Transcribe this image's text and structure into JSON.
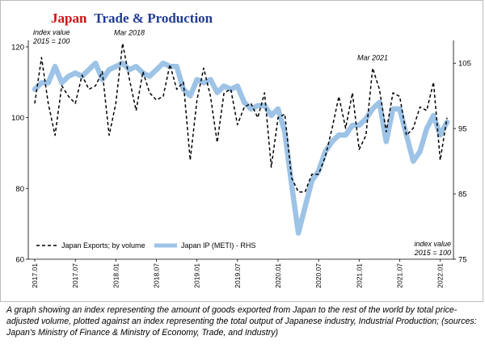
{
  "title": {
    "part1": "Japan",
    "part2": "Trade & Production"
  },
  "caption": "A graph showing an index representing the amount of goods exported from Japan to the rest of the world by total price-adjusted volume, plotted against an index representing the total output of Japanese industry, Industrial Production; (sources: Japan's Ministry of Finance & Ministry of Economy, Trade, and Industry)",
  "chart_data": {
    "type": "line",
    "left_axis_note": [
      "index value",
      "2015 = 100"
    ],
    "right_axis_note": [
      "index value",
      "2015 = 100"
    ],
    "annotations": [
      {
        "text": "Mar 2018",
        "x": "2018.03"
      },
      {
        "text": "Mar 2021",
        "x": "2021.03"
      }
    ],
    "ylim_left": [
      60,
      120
    ],
    "yticks_left": [
      60,
      80,
      100,
      120
    ],
    "ylim_right": [
      75,
      107.5
    ],
    "yticks_right": [
      75,
      85,
      95,
      105
    ],
    "x_tick_labels": [
      "2017.01",
      "2017.07",
      "2018.01",
      "2018.07",
      "2019.01",
      "2019.07",
      "2020.01",
      "2020.07",
      "2021.01",
      "2021.07",
      "2022.01"
    ],
    "legend": {
      "position": "bottom-left",
      "entries": [
        "Japan Exports; by volume",
        "Japan IP (METI) - RHS"
      ]
    },
    "series": [
      {
        "name": "Japan Exports; by volume",
        "axis": "left",
        "style": "dashed",
        "color": "#000000",
        "values": [
          104,
          117,
          104,
          95,
          109,
          106,
          104,
          112,
          108,
          109,
          113,
          95,
          104,
          121,
          111,
          102,
          113,
          107,
          105,
          106,
          115,
          108,
          110,
          88,
          105,
          114,
          106,
          93,
          107,
          108,
          98,
          103,
          104,
          100,
          107,
          86,
          100,
          101,
          83,
          79,
          79,
          84,
          84,
          89,
          97,
          106,
          97,
          107,
          91,
          95,
          114,
          108,
          96,
          107,
          106,
          95,
          97,
          103,
          102,
          110,
          88,
          100
        ]
      },
      {
        "name": "Japan IP (METI) - RHS",
        "axis": "right",
        "style": "solid",
        "color": "#9dc3e6",
        "values": [
          101,
          102,
          102,
          104.5,
          102,
          103,
          103.5,
          103,
          104,
          105,
          102.5,
          104,
          104.5,
          105,
          104,
          104.5,
          103.5,
          103,
          104,
          105,
          104.5,
          104.5,
          101,
          100,
          102.5,
          102,
          102.5,
          100.5,
          101.5,
          101,
          101.5,
          99,
          98,
          98.5,
          98.5,
          97,
          98,
          94.5,
          86.5,
          79,
          83,
          87,
          88.5,
          91.5,
          93,
          94,
          94,
          95.5,
          95.5,
          96.5,
          98,
          99,
          93,
          98,
          98,
          94,
          90,
          91.5,
          95,
          97,
          94,
          96
        ]
      }
    ]
  }
}
